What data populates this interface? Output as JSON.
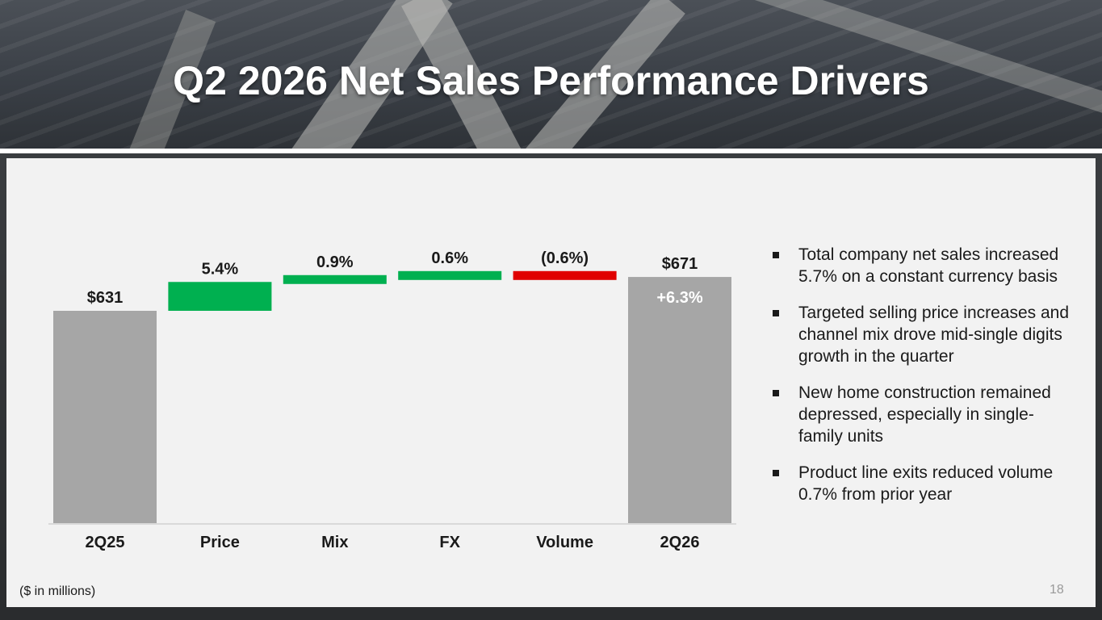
{
  "slide": {
    "title": "Q2 2026 Net Sales Performance Drivers",
    "footnote": "($ in millions)",
    "page_number": "18"
  },
  "chart_data": {
    "type": "bar",
    "subtype": "waterfall",
    "categories": [
      "2Q25",
      "Price",
      "Mix",
      "FX",
      "Volume",
      "2Q26"
    ],
    "values": [
      631,
      34.1,
      5.7,
      3.8,
      -3.8,
      671
    ],
    "bar_kinds": [
      "total",
      "increase",
      "increase",
      "increase",
      "decrease",
      "total"
    ],
    "data_labels": [
      "$631",
      "5.4%",
      "0.9%",
      "0.6%",
      "(0.6%)",
      "$671"
    ],
    "inbar_labels": [
      "",
      "",
      "",
      "",
      "",
      "+6.3%"
    ],
    "units": "$ in millions",
    "ylim": [
      0,
      700
    ],
    "colors": {
      "total": "#a6a6a6",
      "increase": "#00b050",
      "decrease": "#e00000"
    },
    "grid": false,
    "legend": "none"
  },
  "bullets": [
    "Total company net sales increased 5.7% on a constant currency basis",
    "Targeted selling price increases and channel mix drove mid-single digits growth in the quarter",
    "New home construction remained depressed, especially in single-family units",
    "Product line exits reduced volume 0.7% from prior year"
  ]
}
